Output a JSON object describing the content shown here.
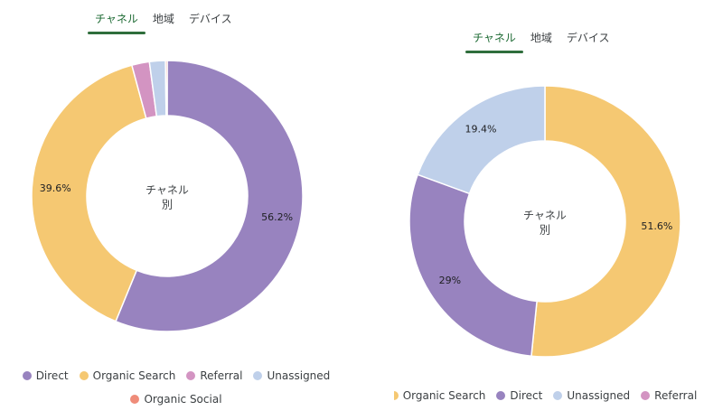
{
  "chart_data": [
    {
      "type": "pie",
      "donut": true,
      "tabs": [
        "チャネル",
        "地域",
        "デバイス"
      ],
      "active_tab": 0,
      "center_label": [
        "チャネル",
        "別"
      ],
      "slices": [
        {
          "name": "Direct",
          "value": 56.2,
          "label": "56.2%",
          "color": "#9883bf"
        },
        {
          "name": "Organic Search",
          "value": 39.6,
          "label": "39.6%",
          "color": "#f5c872"
        },
        {
          "name": "Referral",
          "value": 2.1,
          "label": "",
          "color": "#d394c2"
        },
        {
          "name": "Unassigned",
          "value": 1.9,
          "label": "",
          "color": "#bfd0ea"
        },
        {
          "name": "Organic Social",
          "value": 0.2,
          "label": "",
          "color": "#ef8c79"
        }
      ],
      "legend": [
        [
          "Direct",
          "Organic Search",
          "Referral",
          "Unassigned"
        ],
        [
          "Organic Social"
        ]
      ]
    },
    {
      "type": "pie",
      "donut": true,
      "tabs": [
        "チャネル",
        "地域",
        "デバイス"
      ],
      "active_tab": 0,
      "center_label": [
        "チャネル",
        "別"
      ],
      "slices": [
        {
          "name": "Organic Search",
          "value": 51.6,
          "label": "51.6%",
          "color": "#f5c872"
        },
        {
          "name": "Direct",
          "value": 29,
          "label": "29%",
          "color": "#9883bf"
        },
        {
          "name": "Unassigned",
          "value": 19.4,
          "label": "19.4%",
          "color": "#bfd0ea"
        },
        {
          "name": "Referral",
          "value": 0,
          "label": "",
          "color": "#d394c2"
        }
      ],
      "legend": [
        [
          "Organic Search",
          "Direct",
          "Unassigned",
          "Referral"
        ]
      ]
    }
  ]
}
